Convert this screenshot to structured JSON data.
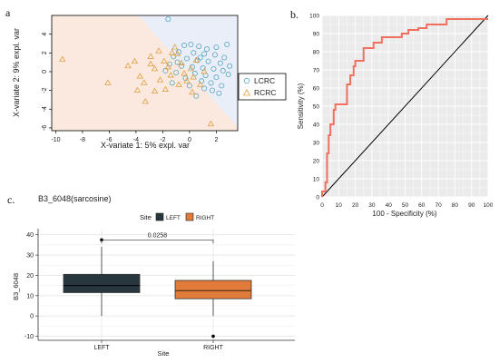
{
  "panel_labels": {
    "a": "a",
    "b": "b.",
    "c": "c."
  },
  "colors": {
    "lcrc": "#5aa7c2",
    "rcrc": "#e0a040",
    "region_lcrc": "#e9eef8",
    "region_rcrc": "#fbe9df",
    "roc": "#f07060",
    "roc_bg": "#ebebeb",
    "left_box": "#27373d",
    "right_box": "#e07b39"
  },
  "chart_data": [
    {
      "type": "scatter",
      "xlabel": "X-variate 1: 5% expl. var",
      "ylabel": "X-variate 2: 9% expl. var",
      "xlim": [
        -10.3,
        3.6
      ],
      "ylim": [
        -6.3,
        6.0
      ],
      "xticks": [
        "-10",
        "-8",
        "-6",
        "-4",
        "-2",
        "0",
        "2"
      ],
      "yticks": [
        "-6",
        "-4",
        "-2",
        "0",
        "2",
        "4"
      ],
      "legend": [
        "LCRC",
        "RCRC"
      ],
      "legend_position": "right",
      "series": [
        {
          "name": "LCRC",
          "marker": "circle",
          "points": [
            [
              -1.6,
              5.6
            ],
            [
              -0.4,
              2.8
            ],
            [
              0.1,
              2.9
            ],
            [
              0.7,
              2.7
            ],
            [
              1.3,
              2.4
            ],
            [
              2.0,
              2.6
            ],
            [
              2.8,
              2.9
            ],
            [
              -0.8,
              2.1
            ],
            [
              0.3,
              2.0
            ],
            [
              1.1,
              1.9
            ],
            [
              1.9,
              1.8
            ],
            [
              2.6,
              1.5
            ],
            [
              -1.2,
              1.6
            ],
            [
              -0.2,
              1.4
            ],
            [
              0.6,
              1.2
            ],
            [
              1.4,
              1.1
            ],
            [
              2.3,
              0.9
            ],
            [
              3.0,
              0.6
            ],
            [
              -1.5,
              0.8
            ],
            [
              -0.6,
              0.6
            ],
            [
              0.2,
              0.5
            ],
            [
              1.0,
              0.4
            ],
            [
              1.8,
              0.3
            ],
            [
              2.5,
              0.1
            ],
            [
              -1.8,
              0.1
            ],
            [
              -1.0,
              -0.1
            ],
            [
              0.4,
              -0.2
            ],
            [
              1.2,
              -0.4
            ],
            [
              2.0,
              -0.6
            ],
            [
              2.9,
              -0.3
            ],
            [
              -0.3,
              -0.7
            ],
            [
              0.9,
              -1.0
            ],
            [
              1.6,
              -1.2
            ],
            [
              2.4,
              -1.5
            ],
            [
              -1.3,
              -1.2
            ],
            [
              0.0,
              -1.5
            ],
            [
              1.1,
              -1.8
            ],
            [
              2.2,
              -2.3
            ],
            [
              0.5,
              -2.6
            ],
            [
              1.7,
              -2.0
            ],
            [
              -0.9,
              1.0
            ],
            [
              0.8,
              1.5
            ]
          ]
        },
        {
          "name": "RCRC",
          "marker": "triangle",
          "points": [
            [
              -9.5,
              1.3
            ],
            [
              -6.1,
              -1.2
            ],
            [
              -4.6,
              0.6
            ],
            [
              -4.1,
              1.1
            ],
            [
              -3.7,
              -0.5
            ],
            [
              -3.4,
              -1.2
            ],
            [
              -2.9,
              1.6
            ],
            [
              -2.6,
              0.3
            ],
            [
              -2.2,
              -0.9
            ],
            [
              -1.9,
              1.1
            ],
            [
              -1.6,
              0.5
            ],
            [
              -1.4,
              -0.4
            ],
            [
              -1.1,
              2.6
            ],
            [
              -0.9,
              1.9
            ],
            [
              -0.6,
              0.9
            ],
            [
              -0.4,
              -0.2
            ],
            [
              -0.2,
              -1.0
            ],
            [
              0.1,
              0.3
            ],
            [
              0.3,
              -0.6
            ],
            [
              0.5,
              1.2
            ],
            [
              0.8,
              -1.4
            ],
            [
              1.1,
              0.0
            ],
            [
              -2.6,
              -2.1
            ],
            [
              -3.3,
              -3.2
            ],
            [
              -1.8,
              -1.9
            ],
            [
              -0.8,
              -1.4
            ],
            [
              0.2,
              -2.2
            ],
            [
              1.6,
              -5.6
            ],
            [
              -2.3,
              2.2
            ],
            [
              -1.3,
              2.0
            ],
            [
              -3.9,
              -2.0
            ],
            [
              -2.9,
              0.8
            ]
          ]
        }
      ]
    },
    {
      "type": "line",
      "xlabel": "100 - Specificity (%)",
      "ylabel": "Sensitivity (%)",
      "xlim": [
        0,
        100
      ],
      "ylim": [
        0,
        100
      ],
      "xticks": [
        "0",
        "10",
        "20",
        "30",
        "40",
        "50",
        "60",
        "70",
        "80",
        "90",
        "100"
      ],
      "yticks": [
        "0",
        "10",
        "20",
        "30",
        "40",
        "50",
        "60",
        "70",
        "80",
        "90",
        "100"
      ],
      "grid": true,
      "reference_line": [
        [
          0,
          0
        ],
        [
          100,
          100
        ]
      ],
      "roc_steps": [
        [
          0,
          0
        ],
        [
          0,
          3
        ],
        [
          2,
          3
        ],
        [
          2,
          8
        ],
        [
          3,
          8
        ],
        [
          3,
          24
        ],
        [
          4,
          24
        ],
        [
          4,
          34
        ],
        [
          5,
          34
        ],
        [
          5,
          40
        ],
        [
          7,
          40
        ],
        [
          7,
          48
        ],
        [
          8,
          48
        ],
        [
          8,
          51
        ],
        [
          15,
          51
        ],
        [
          15,
          62
        ],
        [
          17,
          62
        ],
        [
          17,
          67
        ],
        [
          19,
          67
        ],
        [
          19,
          72
        ],
        [
          20,
          72
        ],
        [
          20,
          75
        ],
        [
          25,
          75
        ],
        [
          25,
          82
        ],
        [
          31,
          82
        ],
        [
          31,
          85
        ],
        [
          36,
          85
        ],
        [
          36,
          88
        ],
        [
          48,
          88
        ],
        [
          48,
          90
        ],
        [
          52,
          90
        ],
        [
          52,
          92
        ],
        [
          58,
          92
        ],
        [
          58,
          93
        ],
        [
          63,
          93
        ],
        [
          63,
          95
        ],
        [
          75,
          95
        ],
        [
          75,
          98
        ],
        [
          100,
          98
        ]
      ]
    },
    {
      "type": "box",
      "title": "B3_6048(sarcosine)",
      "legend_title": "Site",
      "legend": [
        "LEFT",
        "RIGHT"
      ],
      "legend_position": "top",
      "categories": [
        "LEFT",
        "RIGHT"
      ],
      "xlabel": "Site",
      "ylabel": "B3_6048",
      "ylim": [
        -12,
        43
      ],
      "yticks": [
        "-10",
        "0",
        "10",
        "20",
        "30",
        "40"
      ],
      "boxes": [
        {
          "name": "LEFT",
          "min": 0,
          "q1": 11.5,
          "median": 15,
          "q3": 20.5,
          "max": 34,
          "outliers": [
            37.5
          ]
        },
        {
          "name": "RIGHT",
          "min": 0,
          "q1": 8.5,
          "median": 12.5,
          "q3": 17.5,
          "max": 27,
          "outliers": [
            -10
          ]
        }
      ],
      "annotation": "0.0258"
    }
  ]
}
